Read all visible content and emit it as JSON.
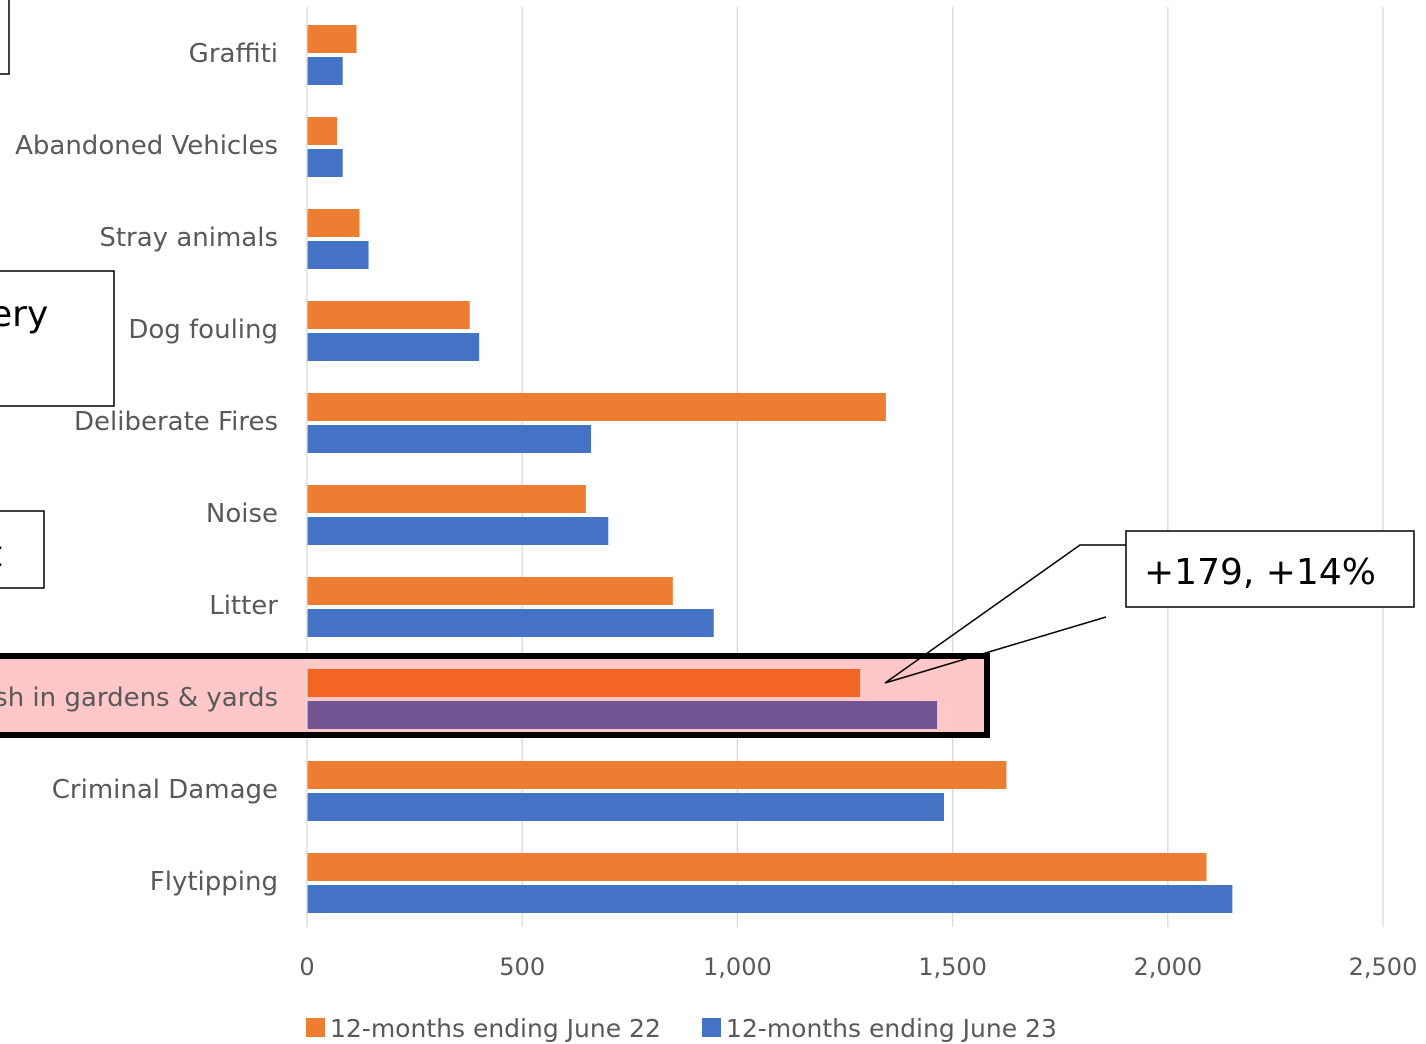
{
  "chart_data": {
    "type": "bar",
    "orientation": "horizontal",
    "categories": [
      "Graffiti",
      "Abandoned Vehicles",
      "Stray animals",
      "Dog fouling",
      "Deliberate Fires",
      "Noise",
      "Litter",
      "ish in gardens & yards",
      "Criminal Damage",
      "Flytipping"
    ],
    "series": [
      {
        "name": "12-months ending June 22",
        "color": "#ED7D31",
        "values": [
          115,
          70,
          122,
          378,
          1345,
          648,
          850,
          1285,
          1625,
          2090
        ]
      },
      {
        "name": "12-months ending June 23",
        "color": "#4472C4",
        "values": [
          83,
          83,
          143,
          400,
          660,
          700,
          945,
          1464,
          1480,
          2150
        ]
      }
    ],
    "xlim": [
      0,
      2500
    ],
    "xticks": [
      0,
      500,
      1000,
      1500,
      2000,
      2500
    ],
    "xtick_labels": [
      "0",
      "500",
      "1,000",
      "1,500",
      "2,000",
      "2,500"
    ],
    "grid": "vertical",
    "legend_position": "bottom",
    "highlight": {
      "category": "ish in gardens & yards",
      "background": "#FFC7C7",
      "colors": [
        "#F26522",
        "#735594"
      ]
    },
    "annotations": [
      {
        "text": "+179, +14%",
        "target": "ish in gardens & yards"
      }
    ],
    "partial_boxes": [
      {
        "text": "iery"
      },
      {
        "text": "t"
      }
    ]
  }
}
